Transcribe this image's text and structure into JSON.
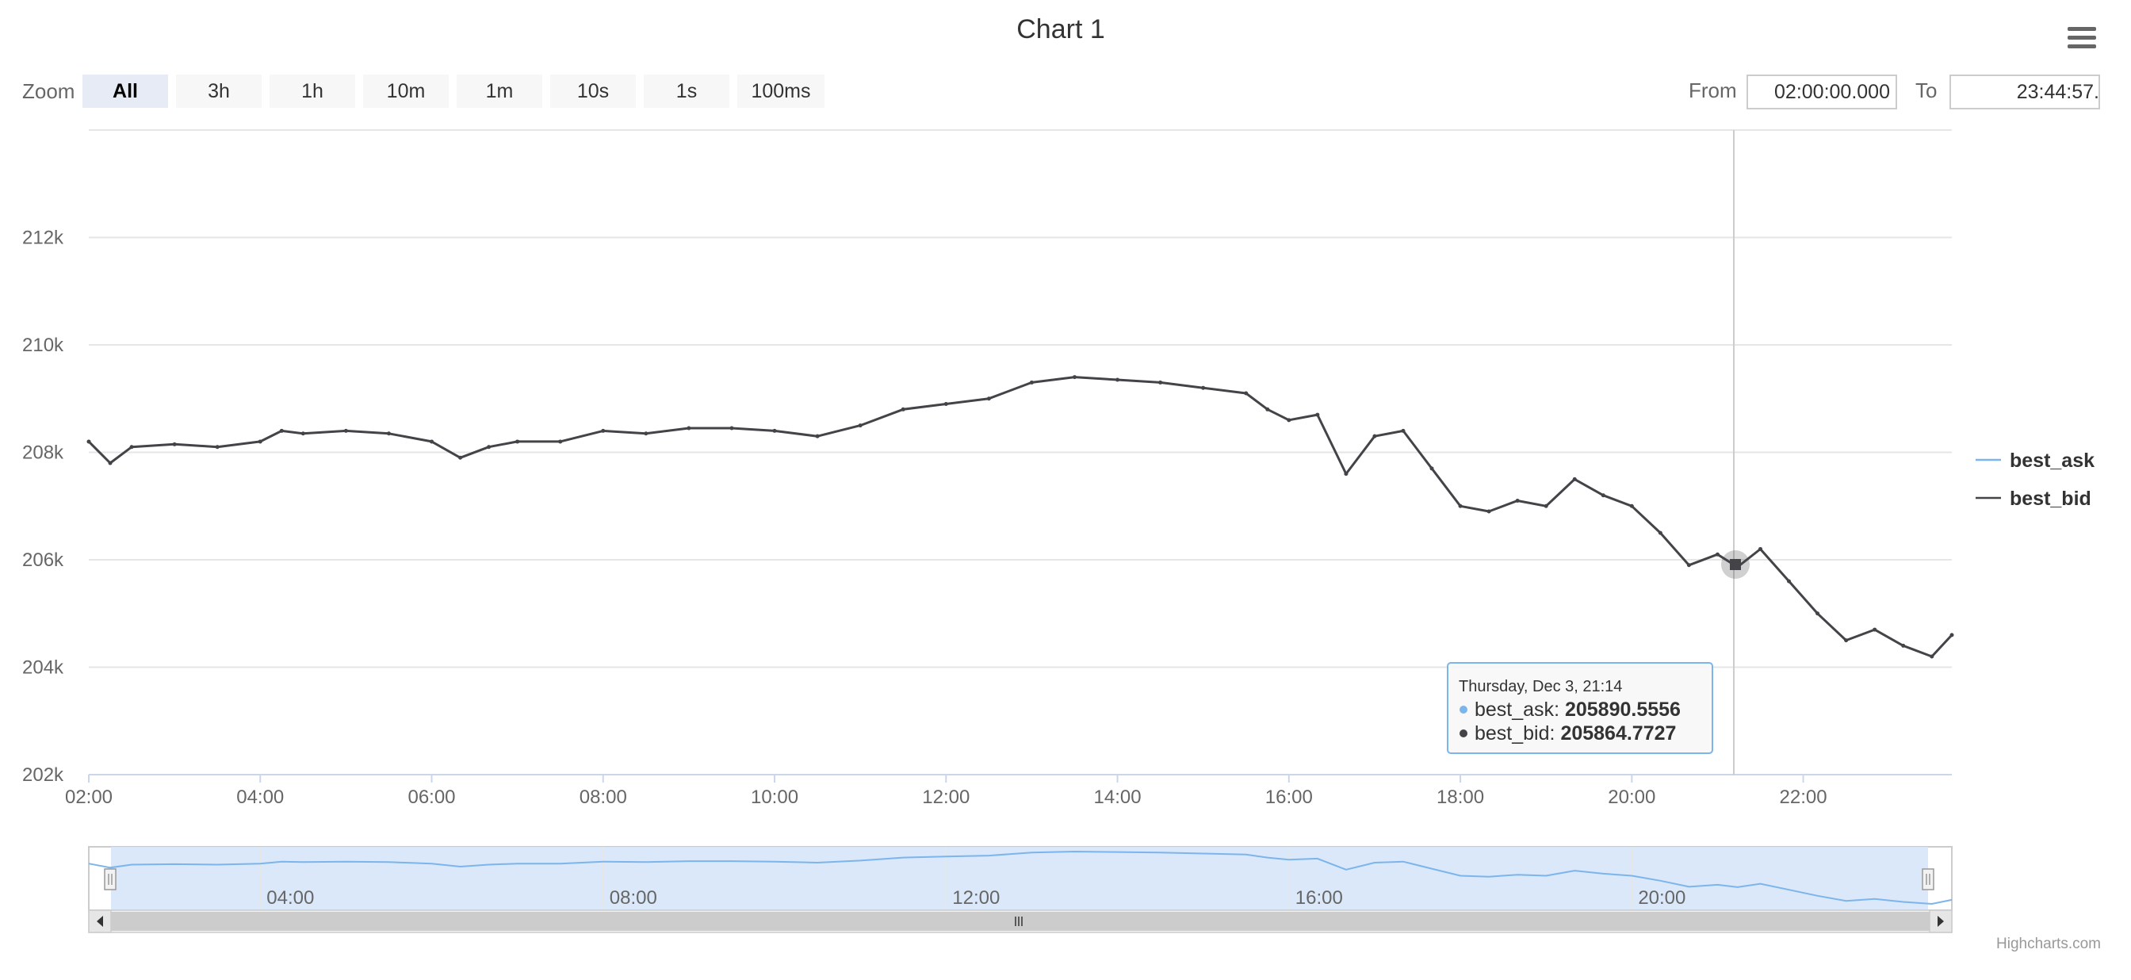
{
  "title": "Chart 1",
  "menu_icon": "hamburger-menu-icon",
  "range_selector": {
    "zoom_label": "Zoom",
    "buttons": [
      "All",
      "3h",
      "1h",
      "10m",
      "1m",
      "10s",
      "1s",
      "100ms"
    ],
    "selected": "All",
    "from_label": "From",
    "from_value": "02:00:00.000",
    "to_label": "To",
    "to_value": "23:44:57."
  },
  "colors": {
    "best_ask": "#7cb5ec",
    "best_bid": "#434348",
    "gridline": "#e6e6e6",
    "navigator_fill": "#d6e6f8",
    "scrollbar": "#cccccc"
  },
  "chart_data": {
    "type": "line",
    "xlabel": "",
    "ylabel": "",
    "x_range": [
      "02:00",
      "23:44"
    ],
    "ylim": [
      202000,
      214000
    ],
    "y_ticks": [
      "202k",
      "204k",
      "206k",
      "208k",
      "210k",
      "212k"
    ],
    "x_ticks": [
      "02:00",
      "04:00",
      "06:00",
      "08:00",
      "10:00",
      "12:00",
      "14:00",
      "16:00",
      "18:00",
      "20:00",
      "22:00"
    ],
    "legend_position": "right",
    "series": [
      {
        "name": "best_ask",
        "color": "#7cb5ec",
        "visible": false,
        "points": []
      },
      {
        "name": "best_bid",
        "color": "#434348",
        "points": [
          [
            "02:00",
            208200
          ],
          [
            "02:15",
            207800
          ],
          [
            "02:30",
            208100
          ],
          [
            "03:00",
            208150
          ],
          [
            "03:30",
            208100
          ],
          [
            "04:00",
            208200
          ],
          [
            "04:15",
            208400
          ],
          [
            "04:30",
            208350
          ],
          [
            "05:00",
            208400
          ],
          [
            "05:30",
            208350
          ],
          [
            "06:00",
            208200
          ],
          [
            "06:20",
            207900
          ],
          [
            "06:40",
            208100
          ],
          [
            "07:00",
            208200
          ],
          [
            "07:30",
            208200
          ],
          [
            "08:00",
            208400
          ],
          [
            "08:30",
            208350
          ],
          [
            "09:00",
            208450
          ],
          [
            "09:30",
            208450
          ],
          [
            "10:00",
            208400
          ],
          [
            "10:30",
            208300
          ],
          [
            "11:00",
            208500
          ],
          [
            "11:30",
            208800
          ],
          [
            "12:00",
            208900
          ],
          [
            "12:30",
            209000
          ],
          [
            "13:00",
            209300
          ],
          [
            "13:30",
            209400
          ],
          [
            "14:00",
            209350
          ],
          [
            "14:30",
            209300
          ],
          [
            "15:00",
            209200
          ],
          [
            "15:30",
            209100
          ],
          [
            "15:45",
            208800
          ],
          [
            "16:00",
            208600
          ],
          [
            "16:20",
            208700
          ],
          [
            "16:40",
            207600
          ],
          [
            "17:00",
            208300
          ],
          [
            "17:20",
            208400
          ],
          [
            "17:40",
            207700
          ],
          [
            "18:00",
            207000
          ],
          [
            "18:20",
            206900
          ],
          [
            "18:40",
            207100
          ],
          [
            "19:00",
            207000
          ],
          [
            "19:20",
            207500
          ],
          [
            "19:40",
            207200
          ],
          [
            "20:00",
            207000
          ],
          [
            "20:20",
            206500
          ],
          [
            "20:40",
            205900
          ],
          [
            "21:00",
            206100
          ],
          [
            "21:14",
            205865
          ],
          [
            "21:30",
            206200
          ],
          [
            "21:50",
            205600
          ],
          [
            "22:10",
            205000
          ],
          [
            "22:30",
            204500
          ],
          [
            "22:50",
            204700
          ],
          [
            "23:10",
            204400
          ],
          [
            "23:30",
            204200
          ],
          [
            "23:44",
            204600
          ]
        ]
      }
    ]
  },
  "tooltip": {
    "title": "Thursday, Dec 3, 21:14",
    "rows": [
      {
        "name": "best_ask",
        "value": "205890.5556",
        "color": "#7cb5ec"
      },
      {
        "name": "best_bid",
        "value": "205864.7727",
        "color": "#434348"
      }
    ]
  },
  "navigator": {
    "ticks": [
      "04:00",
      "08:00",
      "12:00",
      "16:00",
      "20:00"
    ]
  },
  "credits": "Highcharts.com"
}
